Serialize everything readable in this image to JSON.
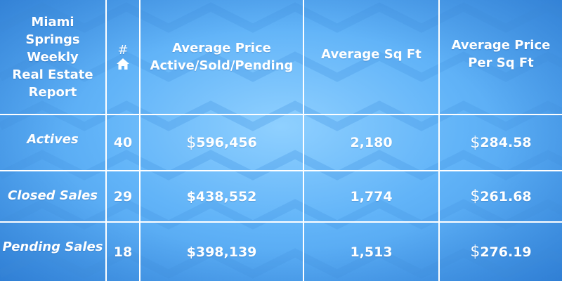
{
  "chart_data": {
    "type": "table",
    "title": "Miami Springs Weekly Real Estate Report",
    "columns": [
      "#",
      "Average Price Active/Sold/Pending",
      "Average Sq Ft",
      "Average Price Per Sq Ft"
    ],
    "rows": [
      {
        "label": "Actives",
        "count": "40",
        "avg_price": "596,456",
        "avg_sqft": "2,180",
        "price_per_sqft": "284.58"
      },
      {
        "label": "Closed Sales",
        "count": "29",
        "avg_price": "438,552",
        "avg_sqft": "1,774",
        "price_per_sqft": "261.68"
      },
      {
        "label": "Pending Sales",
        "count": "18",
        "avg_price": "398,139",
        "avg_sqft": "1,513",
        "price_per_sqft": "276.19"
      }
    ]
  },
  "header": {
    "title_lines": [
      "Miami",
      "Springs",
      "Weekly",
      "Real Estate",
      "Report"
    ],
    "count_symbol": "#",
    "avg_price_lines": [
      "Average Price",
      "Active/Sold/Pending"
    ],
    "avg_sqft": "Average Sq Ft",
    "price_per_sqft_lines": [
      "Average Price",
      "Per Sq Ft"
    ]
  },
  "currency_symbol": "$",
  "icons": {
    "count_icon": "house-icon"
  },
  "colors": {
    "background": "#62b4f8",
    "lines": "#ffffff",
    "text": "#ffffff"
  }
}
